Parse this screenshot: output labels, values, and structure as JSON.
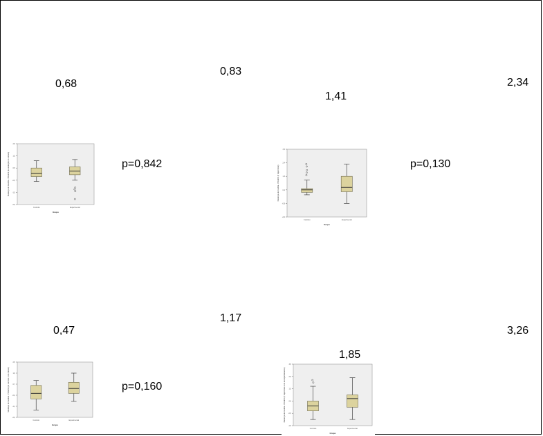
{
  "colors": {
    "box_fill": "#dcd39e",
    "box_stroke": "#6e6a4c",
    "plot_bg": "#efefef",
    "whisker": "#444444"
  },
  "labels": {
    "l1": "0,68",
    "l2": "0,83",
    "l3": "1,41",
    "l4": "2,34",
    "p1": "p=0,842",
    "p2": "p=0,130",
    "l5": "0,47",
    "l6": "1,17",
    "l7": "1,85",
    "l8": "3,26",
    "p3": "p=0,160"
  },
  "chart_data": [
    {
      "type": "boxplot",
      "ylabel": "Mudança de medida - PRAESI (da anulação do cálculo)",
      "xlabel": "Grupo",
      "categories": [
        "Controlo",
        "Experimental"
      ],
      "ylim": [
        -2.5,
        2.5
      ],
      "boxes": [
        {
          "whisker_low": -0.6,
          "q1": -0.2,
          "median": 0.05,
          "q3": 0.5,
          "whisker_high": 1.1,
          "outliers": []
        },
        {
          "whisker_low": -0.5,
          "q1": -0.05,
          "median": 0.25,
          "q3": 0.6,
          "whisker_high": 1.2,
          "outliers": [
            -1.1,
            -1.25,
            -1.4,
            -2.05
          ]
        }
      ]
    },
    {
      "type": "boxplot",
      "ylabel": "Mudança de medida - PRAESI (ir trajectórias)",
      "xlabel": "Grupo",
      "categories": [
        "Controlo",
        "Experimental"
      ],
      "ylim": [
        -2,
        3.5
      ],
      "boxes": [
        {
          "whisker_low": -0.2,
          "q1": 0.0,
          "median": 0.2,
          "q3": 0.3,
          "whisker_high": 1.0,
          "outliers": [
            1.4,
            1.6,
            1.8,
            2.1,
            2.3
          ]
        },
        {
          "whisker_low": -0.9,
          "q1": 0.05,
          "median": 0.4,
          "q3": 1.3,
          "whisker_high": 2.3,
          "outliers": []
        }
      ]
    },
    {
      "type": "boxplot",
      "ylabel": "Mudança de medida - PRAESI (do controlo e do cálculo)",
      "xlabel": "Grupo",
      "categories": [
        "Controlo",
        "Experimental"
      ],
      "ylim": [
        -2,
        2.5
      ],
      "boxes": [
        {
          "whisker_low": -1.4,
          "q1": -0.5,
          "median": -0.05,
          "q3": 0.6,
          "whisker_high": 1.0,
          "outliers": []
        },
        {
          "whisker_low": -0.7,
          "q1": -0.05,
          "median": 0.35,
          "q3": 0.85,
          "whisker_high": 1.6,
          "outliers": []
        }
      ]
    },
    {
      "type": "boxplot",
      "ylabel": "Mudança de medida - PRAESI (ir trajectórias com acompanhamento)",
      "xlabel": "Grupo",
      "categories": [
        "Controlo",
        "Experimental"
      ],
      "ylim": [
        -1.5,
        3.5
      ],
      "boxes": [
        {
          "whisker_low": -1.0,
          "q1": -0.3,
          "median": 0.1,
          "q3": 0.5,
          "whisker_high": 1.7,
          "outliers": [
            2.0,
            2.2
          ]
        },
        {
          "whisker_low": -1.0,
          "q1": 0.0,
          "median": 0.7,
          "q3": 1.0,
          "whisker_high": 2.4,
          "outliers": []
        }
      ]
    }
  ]
}
